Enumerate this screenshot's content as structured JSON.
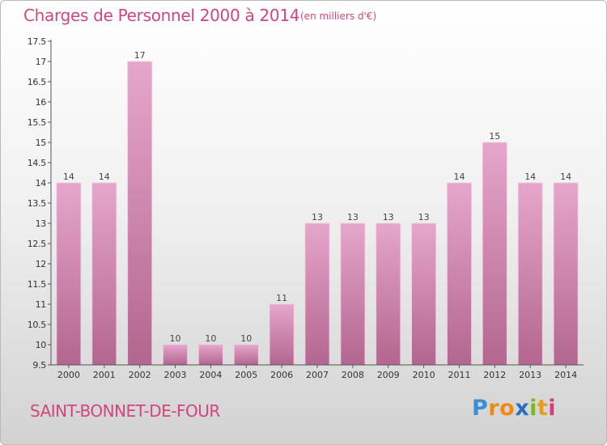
{
  "header": {
    "title": "Charges de Personnel 2000 à 2014",
    "subtitle": "(en milliers d'€)"
  },
  "footer": {
    "town": "SAINT-BONNET-DE-FOUR",
    "logo": "Proxiti"
  },
  "colors": {
    "accent": "#d2457e",
    "bar_top": "#e6a6cc",
    "bar_bottom": "#b3668f"
  },
  "chart_data": {
    "type": "bar",
    "categories": [
      "2000",
      "2001",
      "2002",
      "2003",
      "2004",
      "2005",
      "2006",
      "2007",
      "2008",
      "2009",
      "2010",
      "2011",
      "2012",
      "2013",
      "2014"
    ],
    "values": [
      14,
      14,
      17,
      10,
      10,
      10,
      11,
      13,
      13,
      13,
      13,
      14,
      15,
      14,
      14
    ],
    "data_labels": [
      "14",
      "14",
      "17",
      "10",
      "10",
      "10",
      "11",
      "13",
      "13",
      "13",
      "13",
      "14",
      "15",
      "14",
      "14"
    ],
    "ylim": [
      9.5,
      17.5
    ],
    "yticks": [
      9.5,
      10,
      10.5,
      11,
      11.5,
      12,
      12.5,
      13,
      13.5,
      14,
      14.5,
      15,
      15.5,
      16,
      16.5,
      17,
      17.5
    ],
    "ytick_labels": [
      "9.5",
      "10",
      "10.5",
      "11",
      "11.5",
      "12",
      "12.5",
      "13",
      "13.5",
      "14",
      "14.5",
      "15",
      "15.5",
      "16",
      "16.5",
      "17",
      "17.5"
    ],
    "grid": false,
    "legend": "none"
  }
}
